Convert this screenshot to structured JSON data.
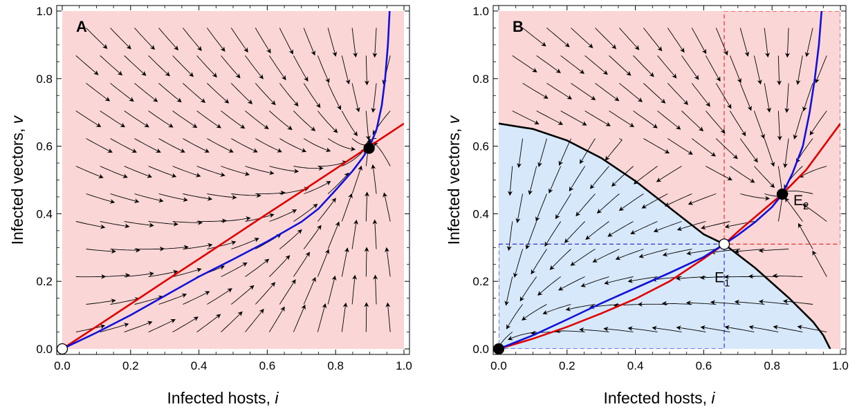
{
  "chart_data": [
    {
      "type": "scatter",
      "panel": "A",
      "xlabel": "Infected hosts, ",
      "xlabel_var": "i",
      "ylabel": "Infected vectors, ",
      "ylabel_var": "v",
      "xlim": [
        0,
        1
      ],
      "ylim": [
        0,
        1
      ],
      "x_ticks": [
        "0.0",
        "0.2",
        "0.4",
        "0.6",
        "0.8",
        "1.0"
      ],
      "y_ticks": [
        "0.0",
        "0.2",
        "0.4",
        "0.6",
        "0.8",
        "1.0"
      ],
      "regions": [
        {
          "color": "#fbd6d6",
          "points": [
            [
              0,
              0
            ],
            [
              1,
              0
            ],
            [
              1,
              1
            ],
            [
              0,
              1
            ]
          ]
        }
      ],
      "nullclines": [
        {
          "color": "#e00000",
          "points": [
            [
              0,
              0
            ],
            [
              0.1,
              0.066
            ],
            [
              0.2,
              0.133
            ],
            [
              0.3,
              0.2
            ],
            [
              0.4,
              0.266
            ],
            [
              0.5,
              0.333
            ],
            [
              0.6,
              0.4
            ],
            [
              0.7,
              0.466
            ],
            [
              0.8,
              0.533
            ],
            [
              0.9,
              0.6
            ],
            [
              1.0,
              0.667
            ]
          ]
        },
        {
          "color": "#1010d8",
          "points": [
            [
              0,
              0
            ],
            [
              0.1,
              0.048
            ],
            [
              0.2,
              0.1
            ],
            [
              0.3,
              0.157
            ],
            [
              0.4,
              0.214
            ],
            [
              0.5,
              0.265
            ],
            [
              0.6,
              0.318
            ],
            [
              0.7,
              0.376
            ],
            [
              0.75,
              0.415
            ],
            [
              0.8,
              0.47
            ],
            [
              0.85,
              0.527
            ],
            [
              0.88,
              0.567
            ],
            [
              0.9,
              0.6
            ],
            [
              0.92,
              0.65
            ],
            [
              0.935,
              0.72
            ],
            [
              0.945,
              0.8
            ],
            [
              0.953,
              0.9
            ],
            [
              0.958,
              1.0
            ]
          ]
        }
      ],
      "equilibria": [
        {
          "x": 0,
          "y": 0,
          "stable": false,
          "label": ""
        },
        {
          "x": 0.898,
          "y": 0.594,
          "stable": true,
          "label": ""
        }
      ],
      "guides": []
    },
    {
      "type": "scatter",
      "panel": "B",
      "xlabel": "Infected hosts, ",
      "xlabel_var": "i",
      "ylabel": "Infected vectors, ",
      "ylabel_var": "v",
      "xlim": [
        0,
        1
      ],
      "ylim": [
        0,
        1
      ],
      "x_ticks": [
        "0.0",
        "0.2",
        "0.4",
        "0.6",
        "0.8",
        "1.0"
      ],
      "y_ticks": [
        "0.0",
        "0.2",
        "0.4",
        "0.6",
        "0.8",
        "1.0"
      ],
      "regions": [
        {
          "color": "#fbd6d6",
          "points": [
            [
              0,
              0
            ],
            [
              1,
              0
            ],
            [
              1,
              1
            ],
            [
              0,
              1
            ]
          ]
        },
        {
          "color": "#d6e8f9",
          "points": [
            [
              0,
              0
            ],
            [
              0,
              0.667
            ],
            [
              0.1,
              0.651
            ],
            [
              0.2,
              0.617
            ],
            [
              0.3,
              0.565
            ],
            [
              0.4,
              0.497
            ],
            [
              0.5,
              0.418
            ],
            [
              0.6,
              0.339
            ],
            [
              0.66,
              0.31
            ],
            [
              0.75,
              0.24
            ],
            [
              0.85,
              0.15
            ],
            [
              0.92,
              0.08
            ],
            [
              0.95,
              0.04
            ],
            [
              0.97,
              0
            ]
          ]
        }
      ],
      "separatrix": {
        "color": "#000000",
        "points": [
          [
            0,
            0.667
          ],
          [
            0.1,
            0.651
          ],
          [
            0.2,
            0.617
          ],
          [
            0.3,
            0.565
          ],
          [
            0.4,
            0.497
          ],
          [
            0.5,
            0.418
          ],
          [
            0.6,
            0.339
          ],
          [
            0.66,
            0.31
          ],
          [
            0.75,
            0.24
          ],
          [
            0.85,
            0.15
          ],
          [
            0.92,
            0.08
          ],
          [
            0.95,
            0.04
          ],
          [
            0.97,
            0
          ]
        ]
      },
      "nullclines": [
        {
          "color": "#e00000",
          "points": [
            [
              0,
              0
            ],
            [
              0.1,
              0.03
            ],
            [
              0.2,
              0.065
            ],
            [
              0.3,
              0.105
            ],
            [
              0.4,
              0.148
            ],
            [
              0.5,
              0.2
            ],
            [
              0.6,
              0.267
            ],
            [
              0.66,
              0.31
            ],
            [
              0.7,
              0.347
            ],
            [
              0.75,
              0.39
            ],
            [
              0.8,
              0.433
            ],
            [
              0.83,
              0.458
            ],
            [
              0.9,
              0.53
            ],
            [
              1.0,
              0.667
            ]
          ]
        },
        {
          "color": "#1010d8",
          "points": [
            [
              0,
              0
            ],
            [
              0.1,
              0.04
            ],
            [
              0.2,
              0.087
            ],
            [
              0.3,
              0.135
            ],
            [
              0.4,
              0.18
            ],
            [
              0.5,
              0.225
            ],
            [
              0.6,
              0.272
            ],
            [
              0.66,
              0.31
            ],
            [
              0.7,
              0.337
            ],
            [
              0.75,
              0.375
            ],
            [
              0.8,
              0.42
            ],
            [
              0.83,
              0.458
            ],
            [
              0.86,
              0.52
            ],
            [
              0.89,
              0.6
            ],
            [
              0.91,
              0.7
            ],
            [
              0.925,
              0.8
            ],
            [
              0.937,
              0.9
            ],
            [
              0.945,
              1.0
            ]
          ]
        }
      ],
      "equilibria": [
        {
          "x": 0,
          "y": 0,
          "stable": true,
          "label": ""
        },
        {
          "x": 0.66,
          "y": 0.31,
          "stable": false,
          "label": "E",
          "sub": "1"
        },
        {
          "x": 0.83,
          "y": 0.458,
          "stable": true,
          "label": "E",
          "sub": "2"
        }
      ],
      "guides": [
        {
          "color": "#3030d8",
          "x0": 0,
          "y0": 0,
          "x1": 0.66,
          "y1": 0.31
        },
        {
          "color": "#e03030",
          "x0": 0.66,
          "y0": 0.31,
          "x1": 1.0,
          "y1": 1.0
        }
      ]
    }
  ]
}
